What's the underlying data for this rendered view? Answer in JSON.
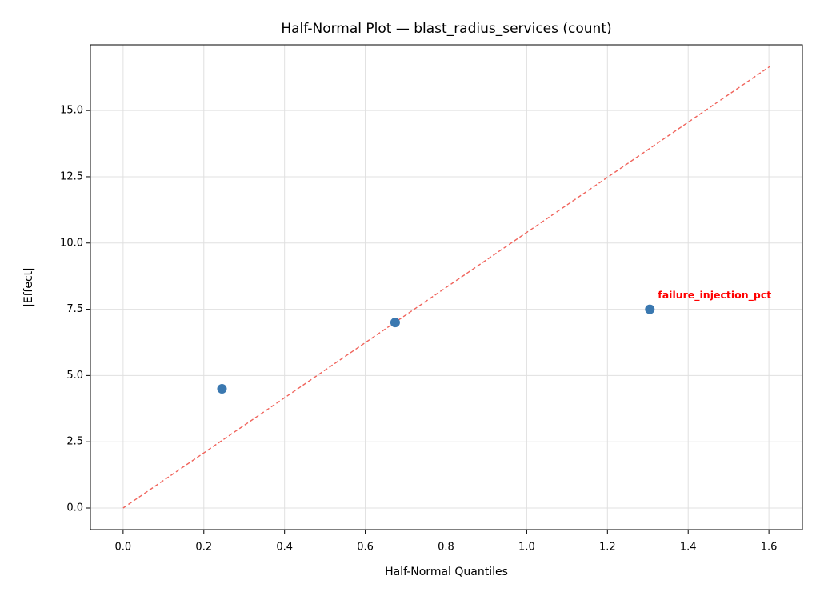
{
  "chart_data": {
    "type": "scatter",
    "title": "Half-Normal Plot — blast_radius_services (count)",
    "x_label": "Half-Normal Quantiles",
    "y_label": "|Effect|",
    "xlim": [
      -0.081,
      1.683
    ],
    "ylim": [
      -0.815,
      17.48
    ],
    "xticks": [
      {
        "value": 0,
        "label": "0.0"
      },
      0.2,
      0.4,
      0.6,
      0.8,
      {
        "value": 1,
        "label": "1.0"
      },
      1.2,
      1.4,
      1.6
    ],
    "yticks": [
      {
        "value": 0,
        "label": "0.0"
      },
      2.5,
      {
        "value": 5,
        "label": "5.0"
      },
      7.5,
      {
        "value": 10,
        "label": "10.0"
      },
      12.5,
      {
        "value": 15,
        "label": "15.0"
      }
    ],
    "grid": true,
    "series": [
      {
        "color": "#3a78b0",
        "x": [
          0.245,
          0.674,
          1.305
        ],
        "values": [
          4.5,
          7.0,
          7.5
        ],
        "point_labels": [
          null,
          null,
          "failure_injection_pct"
        ],
        "label_color": "#ff0000"
      }
    ],
    "reference_line": {
      "color": "#f0645c",
      "style": "dashed",
      "x": [
        0,
        1.602
      ],
      "values": [
        0,
        16.66
      ]
    }
  }
}
